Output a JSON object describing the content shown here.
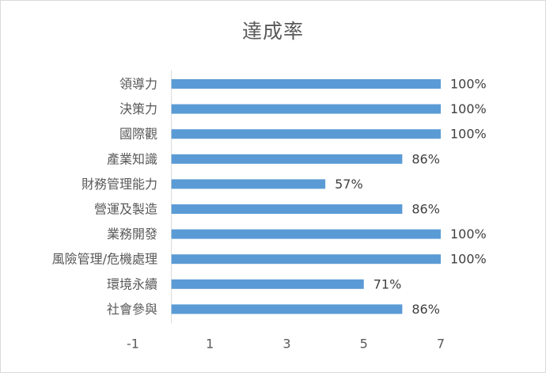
{
  "chart_data": {
    "type": "bar",
    "orientation": "horizontal",
    "title": "達成率",
    "categories": [
      "領導力",
      "決策力",
      "國際觀",
      "產業知識",
      "財務管理能力",
      "營運及製造",
      "業務開發",
      "風險管理/危機處理",
      "環境永續",
      "社會參與"
    ],
    "values": [
      7,
      7,
      7,
      6,
      4,
      6,
      7,
      7,
      5,
      6
    ],
    "data_labels": [
      "100%",
      "100%",
      "100%",
      "86%",
      "57%",
      "86%",
      "100%",
      "100%",
      "71%",
      "86%"
    ],
    "x_ticks": [
      "-1",
      "1",
      "3",
      "5",
      "7"
    ],
    "xlim": [
      -1,
      7
    ],
    "grid": false,
    "legend": "none",
    "colors": {
      "bar": "#5b9bd5",
      "axis": "#d9d9d9",
      "text": "#595959"
    }
  }
}
